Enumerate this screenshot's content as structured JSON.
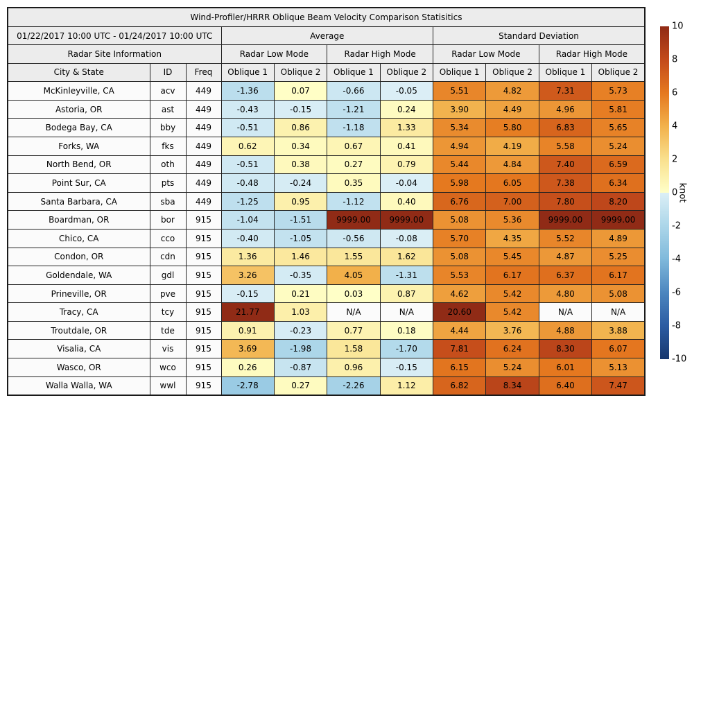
{
  "chart_data": {
    "type": "table",
    "title": "Wind-Profiler/HRRR Oblique Beam Velocity Comparison Statisitics",
    "header": {
      "date_range": "01/22/2017 10:00 UTC - 01/24/2017 10:00 UTC",
      "group_average": "Average",
      "group_std": "Standard Deviation",
      "radar_site_info": "Radar Site Information",
      "mode_low": "Radar Low Mode",
      "mode_high": "Radar High Mode",
      "col_city": "City & State",
      "col_id": "ID",
      "col_freq": "Freq",
      "col_oblique1": "Oblique 1",
      "col_oblique2": "Oblique 2"
    },
    "rows": [
      {
        "city": "McKinleyville, CA",
        "id": "acv",
        "freq": "449",
        "values": [
          "-1.36",
          "0.07",
          "-0.66",
          "-0.05",
          "5.51",
          "4.82",
          "7.31",
          "5.73"
        ]
      },
      {
        "city": "Astoria, OR",
        "id": "ast",
        "freq": "449",
        "values": [
          "-0.43",
          "-0.15",
          "-1.21",
          "0.24",
          "3.90",
          "4.49",
          "4.96",
          "5.81"
        ]
      },
      {
        "city": "Bodega Bay, CA",
        "id": "bby",
        "freq": "449",
        "values": [
          "-0.51",
          "0.86",
          "-1.18",
          "1.33",
          "5.34",
          "5.80",
          "6.83",
          "5.65"
        ]
      },
      {
        "city": "Forks, WA",
        "id": "fks",
        "freq": "449",
        "values": [
          "0.62",
          "0.34",
          "0.67",
          "0.41",
          "4.94",
          "4.19",
          "5.58",
          "5.24"
        ]
      },
      {
        "city": "North Bend, OR",
        "id": "oth",
        "freq": "449",
        "values": [
          "-0.51",
          "0.38",
          "0.27",
          "0.79",
          "5.44",
          "4.84",
          "7.40",
          "6.59"
        ]
      },
      {
        "city": "Point Sur, CA",
        "id": "pts",
        "freq": "449",
        "values": [
          "-0.48",
          "-0.24",
          "0.35",
          "-0.04",
          "5.98",
          "6.05",
          "7.38",
          "6.34"
        ]
      },
      {
        "city": "Santa Barbara, CA",
        "id": "sba",
        "freq": "449",
        "values": [
          "-1.25",
          "0.95",
          "-1.12",
          "0.40",
          "6.76",
          "7.00",
          "7.80",
          "8.20"
        ]
      },
      {
        "city": "Boardman, OR",
        "id": "bor",
        "freq": "915",
        "values": [
          "-1.04",
          "-1.51",
          "9999.00",
          "9999.00",
          "5.08",
          "5.36",
          "9999.00",
          "9999.00"
        ]
      },
      {
        "city": "Chico, CA",
        "id": "cco",
        "freq": "915",
        "values": [
          "-0.40",
          "-1.05",
          "-0.56",
          "-0.08",
          "5.70",
          "4.35",
          "5.52",
          "4.89"
        ]
      },
      {
        "city": "Condon, OR",
        "id": "cdn",
        "freq": "915",
        "values": [
          "1.36",
          "1.46",
          "1.55",
          "1.62",
          "5.08",
          "5.45",
          "4.87",
          "5.25"
        ]
      },
      {
        "city": "Goldendale, WA",
        "id": "gdl",
        "freq": "915",
        "values": [
          "3.26",
          "-0.35",
          "4.05",
          "-1.31",
          "5.53",
          "6.17",
          "6.37",
          "6.17"
        ]
      },
      {
        "city": "Prineville, OR",
        "id": "pve",
        "freq": "915",
        "values": [
          "-0.15",
          "0.21",
          "0.03",
          "0.87",
          "4.62",
          "5.42",
          "4.80",
          "5.08"
        ]
      },
      {
        "city": "Tracy, CA",
        "id": "tcy",
        "freq": "915",
        "values": [
          "21.77",
          "1.03",
          "N/A",
          "N/A",
          "20.60",
          "5.42",
          "N/A",
          "N/A"
        ]
      },
      {
        "city": "Troutdale, OR",
        "id": "tde",
        "freq": "915",
        "values": [
          "0.91",
          "-0.23",
          "0.77",
          "0.18",
          "4.44",
          "3.76",
          "4.88",
          "3.88"
        ]
      },
      {
        "city": "Visalia, CA",
        "id": "vis",
        "freq": "915",
        "values": [
          "3.69",
          "-1.98",
          "1.58",
          "-1.70",
          "7.81",
          "6.24",
          "8.30",
          "6.07"
        ]
      },
      {
        "city": "Wasco, OR",
        "id": "wco",
        "freq": "915",
        "values": [
          "0.26",
          "-0.87",
          "0.96",
          "-0.15",
          "6.15",
          "5.24",
          "6.01",
          "5.13"
        ]
      },
      {
        "city": "Walla Walla, WA",
        "id": "wwl",
        "freq": "915",
        "values": [
          "-2.78",
          "0.27",
          "-2.26",
          "1.12",
          "6.82",
          "8.34",
          "6.40",
          "7.47"
        ]
      }
    ],
    "colorbar": {
      "label": "knot",
      "min": -10,
      "max": 10,
      "ticks": [
        10,
        8,
        6,
        4,
        2,
        0,
        -2,
        -4,
        -6,
        -8,
        -10
      ],
      "positive_stops": [
        [
          0,
          "#FFFFC8"
        ],
        [
          2,
          "#F9E08E"
        ],
        [
          4,
          "#F2B14B"
        ],
        [
          6,
          "#E5781F"
        ],
        [
          8,
          "#C34A1B"
        ],
        [
          10,
          "#902B16"
        ]
      ],
      "negative_stops": [
        [
          0,
          "#DCEFF6"
        ],
        [
          -2,
          "#ACD6E9"
        ],
        [
          -4,
          "#7FB9DB"
        ],
        [
          -6,
          "#4C86BF"
        ],
        [
          -8,
          "#2C5CA2"
        ],
        [
          -10,
          "#17376E"
        ]
      ],
      "na_color": "#FBFBFB"
    }
  }
}
